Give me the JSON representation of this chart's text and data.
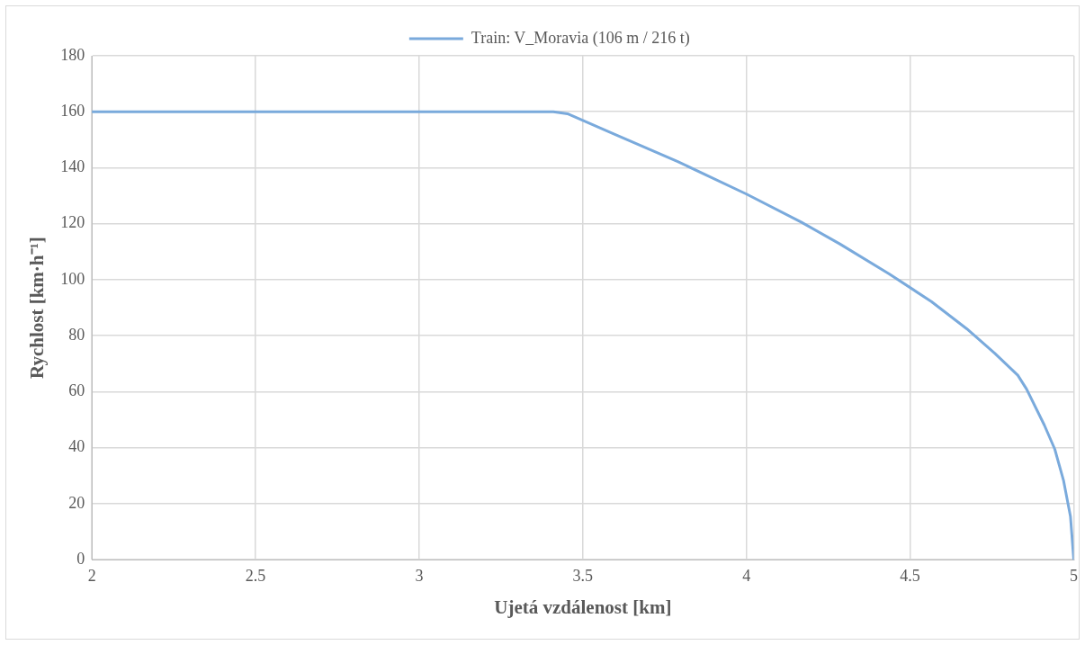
{
  "chart_data": {
    "type": "line",
    "xlabel": "Ujetá vzdálenost [km]",
    "ylabel": "Rychlost [km·h⁻¹]",
    "x": [
      2,
      3.41,
      3.453,
      3.585,
      3.79,
      4.0,
      4.167,
      4.285,
      4.436,
      4.565,
      4.673,
      4.759,
      4.829,
      4.856,
      4.91,
      4.942,
      4.969,
      4.99,
      5.0
    ],
    "series": [
      {
        "name": "Train: V_Moravia (106 m / 216 t)",
        "color": "#7aaadc",
        "values": [
          160,
          160,
          159.3,
          152.6,
          142.2,
          130.6,
          120.6,
          112.8,
          102.1,
          92.2,
          82.5,
          73.7,
          65.9,
          60.9,
          48.1,
          39.5,
          28.2,
          15.4,
          0
        ]
      }
    ],
    "xlim": [
      2,
      5
    ],
    "xticks": [
      2,
      2.5,
      3,
      3.5,
      4,
      4.5,
      5
    ],
    "ylim": [
      0,
      180
    ],
    "yticks": [
      0,
      20,
      40,
      60,
      80,
      100,
      120,
      140,
      160,
      180
    ],
    "grid": true,
    "legend": "top",
    "marker": "none",
    "line_style": "solid"
  }
}
